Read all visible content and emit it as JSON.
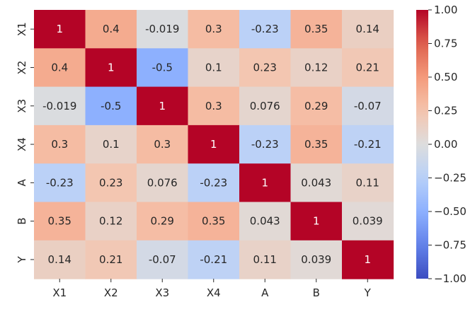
{
  "chart_data": {
    "type": "heatmap",
    "title": "",
    "xlabel": "",
    "ylabel": "",
    "x_labels": [
      "X1",
      "X2",
      "X3",
      "X4",
      "A",
      "B",
      "Y"
    ],
    "y_labels": [
      "X1",
      "X2",
      "X3",
      "X4",
      "A",
      "B",
      "Y"
    ],
    "values": [
      [
        1,
        0.4,
        -0.019,
        0.3,
        -0.23,
        0.35,
        0.14
      ],
      [
        0.4,
        1,
        -0.5,
        0.1,
        0.23,
        0.12,
        0.21
      ],
      [
        -0.019,
        -0.5,
        1,
        0.3,
        0.076,
        0.29,
        -0.07
      ],
      [
        0.3,
        0.1,
        0.3,
        1,
        -0.23,
        0.35,
        -0.21
      ],
      [
        -0.23,
        0.23,
        0.076,
        -0.23,
        1,
        0.043,
        0.11
      ],
      [
        0.35,
        0.12,
        0.29,
        0.35,
        0.043,
        1,
        0.039
      ],
      [
        0.14,
        0.21,
        -0.07,
        -0.21,
        0.11,
        0.039,
        1
      ]
    ],
    "cell_labels": [
      [
        "1",
        "0.4",
        "-0.019",
        "0.3",
        "-0.23",
        "0.35",
        "0.14"
      ],
      [
        "0.4",
        "1",
        "-0.5",
        "0.1",
        "0.23",
        "0.12",
        "0.21"
      ],
      [
        "-0.019",
        "-0.5",
        "1",
        "0.3",
        "0.076",
        "0.29",
        "-0.07"
      ],
      [
        "0.3",
        "0.1",
        "0.3",
        "1",
        "-0.23",
        "0.35",
        "-0.21"
      ],
      [
        "-0.23",
        "0.23",
        "0.076",
        "-0.23",
        "1",
        "0.043",
        "0.11"
      ],
      [
        "0.35",
        "0.12",
        "0.29",
        "0.35",
        "0.043",
        "1",
        "0.039"
      ],
      [
        "0.14",
        "0.21",
        "-0.07",
        "-0.21",
        "0.11",
        "0.039",
        "1"
      ]
    ],
    "colorbar": {
      "colormap": "coolwarm",
      "range": [
        -1.0,
        1.0
      ],
      "ticks": [
        1.0,
        0.75,
        0.5,
        0.25,
        0.0,
        -0.25,
        -0.5,
        -0.75,
        -1.0
      ],
      "tick_labels": [
        "1.00",
        "0.75",
        "0.50",
        "0.25",
        "0.00",
        "−0.25",
        "−0.50",
        "−0.75",
        "−1.00"
      ]
    },
    "colors": {
      "low": "#3b4cc0",
      "mid": "#dddddd",
      "high": "#b40426"
    }
  }
}
